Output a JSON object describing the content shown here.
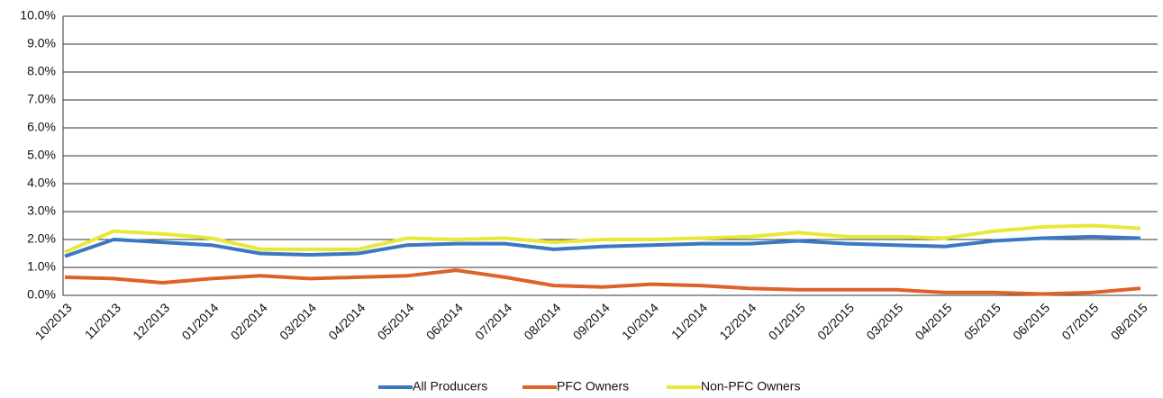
{
  "chart_data": {
    "type": "line",
    "categories": [
      "10/2013",
      "11/2013",
      "12/2013",
      "01/2014",
      "02/2014",
      "03/2014",
      "04/2014",
      "05/2014",
      "06/2014",
      "07/2014",
      "08/2014",
      "09/2014",
      "10/2014",
      "11/2014",
      "12/2014",
      "01/2015",
      "02/2015",
      "03/2015",
      "04/2015",
      "05/2015",
      "06/2015",
      "07/2015",
      "08/2015"
    ],
    "series": [
      {
        "name": "All Producers",
        "color": "#3a78c2",
        "values": [
          1.4,
          2.0,
          1.9,
          1.8,
          1.5,
          1.45,
          1.5,
          1.8,
          1.85,
          1.85,
          1.65,
          1.75,
          1.8,
          1.85,
          1.85,
          1.95,
          1.85,
          1.8,
          1.75,
          1.95,
          2.05,
          2.1,
          2.05
        ]
      },
      {
        "name": "PFC Owners",
        "color": "#e0602a",
        "values": [
          0.65,
          0.6,
          0.45,
          0.6,
          0.7,
          0.6,
          0.65,
          0.7,
          0.9,
          0.65,
          0.35,
          0.3,
          0.4,
          0.35,
          0.25,
          0.2,
          0.2,
          0.2,
          0.1,
          0.1,
          0.05,
          0.1,
          0.25
        ]
      },
      {
        "name": "Non-PFC Owners",
        "color": "#e8e838",
        "values": [
          1.55,
          2.3,
          2.2,
          2.05,
          1.65,
          1.65,
          1.65,
          2.05,
          2.0,
          2.05,
          1.9,
          2.0,
          2.0,
          2.05,
          2.1,
          2.25,
          2.1,
          2.1,
          2.05,
          2.3,
          2.45,
          2.5,
          2.4
        ]
      }
    ],
    "ylim": [
      0,
      10
    ],
    "yticks": [
      {
        "value": 0,
        "label": "0.0%"
      },
      {
        "value": 1,
        "label": "1.0%"
      },
      {
        "value": 2,
        "label": "2.0%"
      },
      {
        "value": 3,
        "label": "3.0%"
      },
      {
        "value": 4,
        "label": "4.0%"
      },
      {
        "value": 5,
        "label": "5.0%"
      },
      {
        "value": 6,
        "label": "6.0%"
      },
      {
        "value": 7,
        "label": "7.0%"
      },
      {
        "value": 8,
        "label": "8.0%"
      },
      {
        "value": 9,
        "label": "9.0%"
      },
      {
        "value": 10,
        "label": "10.0%"
      }
    ],
    "grid": true,
    "legend": "bottom"
  }
}
